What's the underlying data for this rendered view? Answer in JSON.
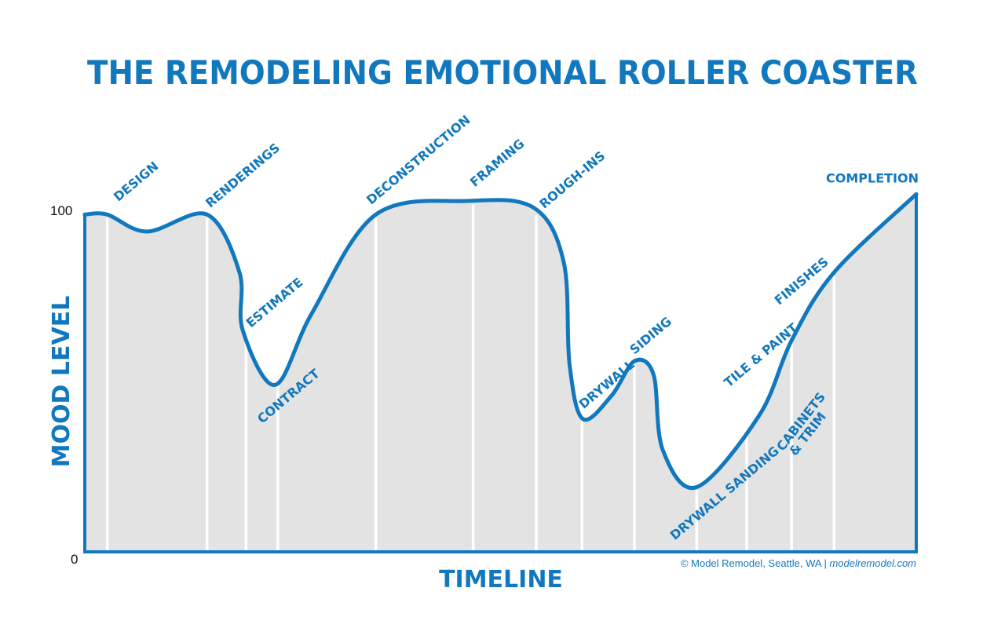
{
  "chart_data": {
    "type": "area",
    "title": "THE REMODELING EMOTIONAL ROLLER COASTER",
    "xlabel": "TIMELINE",
    "ylabel": "MOOD LEVEL",
    "yticks": [
      "0",
      "100"
    ],
    "ylim": [
      0,
      100
    ],
    "grid": false,
    "legend": "none",
    "credit_main": "© Model Remodel, Seattle, WA | ",
    "credit_link": "modelremodel.com",
    "colors": {
      "line": "#1278be",
      "fill": "#e3e3e3",
      "divider": "#ffffff",
      "text": "#1278be"
    },
    "x_range": [
      0,
      100
    ],
    "curve": [
      {
        "x": 0.0,
        "y": 99
      },
      {
        "x": 2.7,
        "y": 99
      },
      {
        "x": 7.5,
        "y": 94
      },
      {
        "x": 14.7,
        "y": 99
      },
      {
        "x": 18.6,
        "y": 82
      },
      {
        "x": 19.0,
        "y": 65
      },
      {
        "x": 22.9,
        "y": 49
      },
      {
        "x": 27.3,
        "y": 70
      },
      {
        "x": 35.0,
        "y": 99
      },
      {
        "x": 46.0,
        "y": 103
      },
      {
        "x": 54.0,
        "y": 101
      },
      {
        "x": 57.6,
        "y": 85
      },
      {
        "x": 58.3,
        "y": 55
      },
      {
        "x": 59.9,
        "y": 39
      },
      {
        "x": 63.4,
        "y": 46
      },
      {
        "x": 66.1,
        "y": 56
      },
      {
        "x": 68.4,
        "y": 52
      },
      {
        "x": 69.5,
        "y": 30
      },
      {
        "x": 73.6,
        "y": 19
      },
      {
        "x": 81.1,
        "y": 40
      },
      {
        "x": 85.0,
        "y": 62
      },
      {
        "x": 90.1,
        "y": 82
      },
      {
        "x": 100.0,
        "y": 105
      }
    ],
    "stages": [
      {
        "label": "DESIGN",
        "x": 2.7
      },
      {
        "label": "RENDERINGS",
        "x": 14.7
      },
      {
        "label": "ESTIMATE",
        "x": 19.4
      },
      {
        "label": "CONTRACT",
        "x": 23.2
      },
      {
        "label": "DECONSTRUCTION",
        "x": 35.0
      },
      {
        "label": "FRAMING",
        "x": 46.7
      },
      {
        "label": "ROUGH-INS",
        "x": 54.3
      },
      {
        "label": "DRYWALL",
        "x": 59.8
      },
      {
        "label": "SIDING",
        "x": 66.1
      },
      {
        "label": "DRYWALL SANDING",
        "x": 73.6
      },
      {
        "label": "CABINETS",
        "x": 79.6
      },
      {
        "label": "& TRIM",
        "x": 79.6
      },
      {
        "label": "TILE & PAINT",
        "x": 85.0
      },
      {
        "label": "FINISHES",
        "x": 90.1
      },
      {
        "label": "COMPLETION",
        "x": 100.0
      }
    ]
  }
}
